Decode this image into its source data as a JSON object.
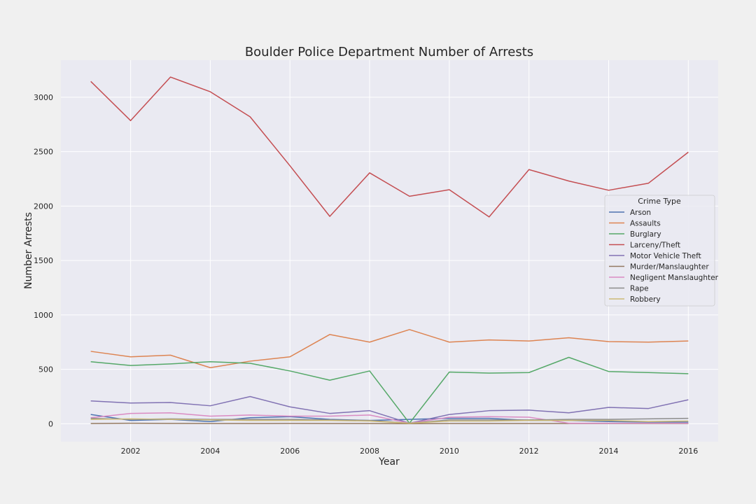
{
  "chart_data": {
    "type": "line",
    "title": "Boulder Police Department Number of Arrests",
    "xlabel": "Year",
    "ylabel": "Number Arrests",
    "x": [
      2001,
      2002,
      2003,
      2004,
      2005,
      2006,
      2007,
      2008,
      2009,
      2010,
      2011,
      2012,
      2013,
      2014,
      2015,
      2016
    ],
    "xticks": [
      2002,
      2004,
      2006,
      2008,
      2010,
      2012,
      2014,
      2016
    ],
    "yticks": [
      0,
      500,
      1000,
      1500,
      2000,
      2500,
      3000
    ],
    "xlim": [
      2000.25,
      2016.75
    ],
    "ylim": [
      -165,
      3340
    ],
    "grid": true,
    "legend": {
      "title": "Crime Type",
      "placement": "center-right"
    },
    "series": [
      {
        "name": "Arson",
        "color": "#4c72b0",
        "values": [
          85,
          30,
          40,
          20,
          55,
          65,
          40,
          30,
          40,
          50,
          50,
          30,
          30,
          20,
          15,
          15
        ]
      },
      {
        "name": "Assaults",
        "color": "#dd8452",
        "values": [
          665,
          615,
          630,
          515,
          575,
          615,
          820,
          750,
          865,
          750,
          770,
          760,
          790,
          755,
          750,
          760
        ]
      },
      {
        "name": "Burglary",
        "color": "#55a868",
        "values": [
          570,
          535,
          550,
          570,
          555,
          485,
          400,
          485,
          5,
          475,
          465,
          470,
          610,
          480,
          470,
          460
        ]
      },
      {
        "name": "Larceny/Theft",
        "color": "#c44e52",
        "values": [
          3145,
          2785,
          3185,
          3050,
          2820,
          2370,
          1905,
          2305,
          2090,
          2150,
          1900,
          2335,
          2230,
          2145,
          2210,
          2495
        ]
      },
      {
        "name": "Motor Vehicle Theft",
        "color": "#8172b3",
        "values": [
          210,
          190,
          195,
          165,
          250,
          155,
          95,
          120,
          5,
          85,
          120,
          125,
          100,
          150,
          140,
          220
        ]
      },
      {
        "name": "Murder/Manslaughter",
        "color": "#937860",
        "values": [
          2,
          5,
          3,
          2,
          2,
          3,
          2,
          2,
          1,
          2,
          2,
          2,
          2,
          2,
          2,
          2
        ]
      },
      {
        "name": "Negligent Manslaughter",
        "color": "#da8bc3",
        "values": [
          55,
          95,
          100,
          70,
          80,
          70,
          70,
          80,
          5,
          60,
          65,
          60,
          5,
          5,
          5,
          5
        ]
      },
      {
        "name": "Rape",
        "color": "#8c8c8c",
        "values": [
          50,
          40,
          45,
          40,
          40,
          40,
          35,
          30,
          5,
          35,
          35,
          35,
          40,
          40,
          45,
          50
        ]
      },
      {
        "name": "Robbery",
        "color": "#ccb974",
        "values": [
          40,
          45,
          40,
          35,
          30,
          30,
          30,
          25,
          5,
          25,
          25,
          30,
          30,
          30,
          20,
          25
        ]
      }
    ]
  }
}
